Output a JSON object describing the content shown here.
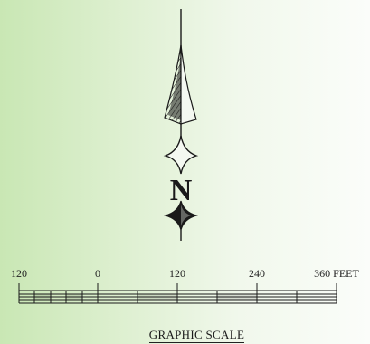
{
  "north_arrow": {
    "letter": "N",
    "icon": "north-arrow-icon"
  },
  "graphic_scale": {
    "title": "GRAPHIC SCALE",
    "labels": [
      "120",
      "0",
      "120",
      "240",
      "360 FEET"
    ],
    "colors": {
      "ink": "#1a1a1a"
    }
  }
}
